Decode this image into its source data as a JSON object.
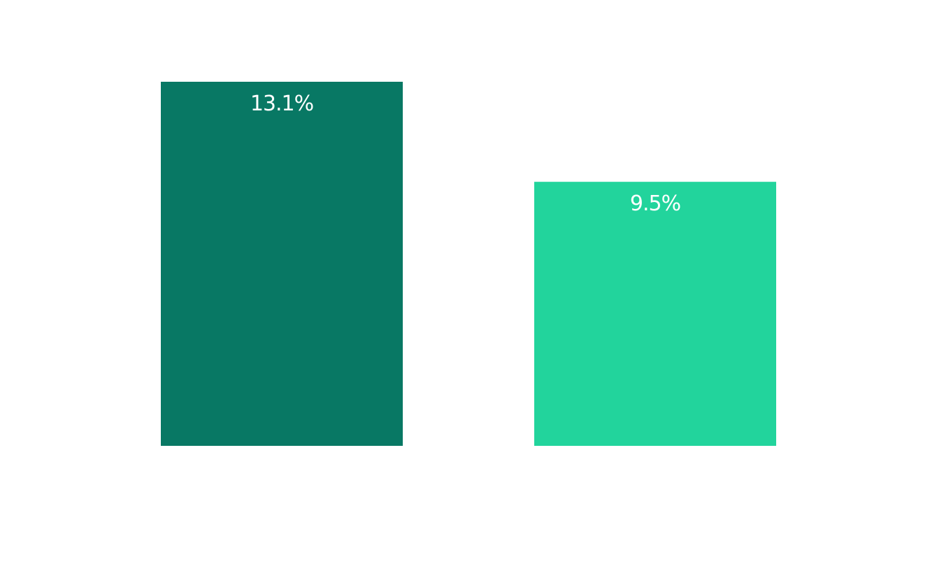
{
  "chart_data": {
    "type": "bar",
    "title": "",
    "xlabel": "",
    "ylabel": "",
    "categories": [
      "",
      ""
    ],
    "values": [
      13.1,
      9.5
    ],
    "data_labels": [
      "13.1%",
      "9.5%"
    ],
    "colors": [
      "#087864",
      "#22D49C"
    ],
    "ylim": [
      0,
      13.1
    ],
    "grid": false,
    "axes_visible": false,
    "label_color": "#FFFFFF"
  }
}
